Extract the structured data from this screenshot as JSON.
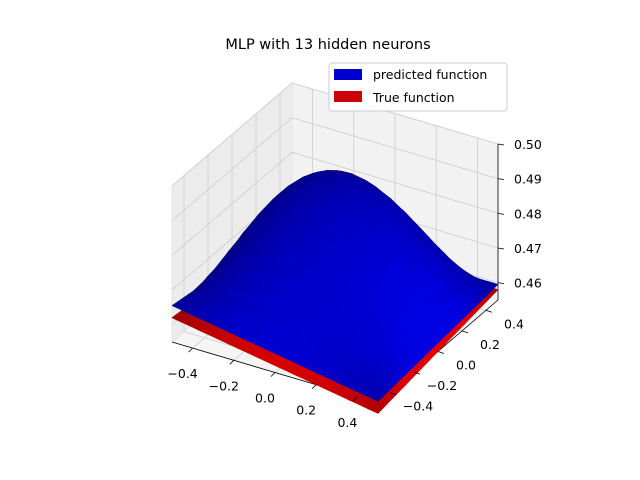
{
  "chart_data": {
    "type": "surface3d",
    "title": "MLP with 13 hidden neurons",
    "xlabel": "",
    "ylabel": "",
    "zlabel": "",
    "x_ticks": [
      "−0.4",
      "−0.2",
      "0.0",
      "0.2",
      "0.4"
    ],
    "y_ticks": [
      "−0.4",
      "−0.2",
      "0.0",
      "0.2",
      "0.4"
    ],
    "z_ticks": [
      "0.46",
      "0.47",
      "0.48",
      "0.49",
      "0.50"
    ],
    "xlim": [
      -0.5,
      0.5
    ],
    "ylim": [
      -0.5,
      0.5
    ],
    "zlim": [
      0.455,
      0.5
    ],
    "grid": true,
    "legend_position": "top-right",
    "series": [
      {
        "name": "predicted function",
        "color": "#0000cc",
        "peak_z": 0.4962,
        "corner_z": {
          "x-0.5_y-0.5": 0.4655,
          "x-0.5_y0.5": 0.4595,
          "x0.5_y-0.5": 0.4555,
          "x0.5_y0.5": 0.4595
        }
      },
      {
        "name": "True function",
        "color": "#cc0000",
        "peak_z": 0.4962,
        "corner_z": {
          "x-0.5_y-0.5": 0.462,
          "x-0.5_y0.5": 0.458,
          "x0.5_y-0.5": 0.452,
          "x0.5_y0.5": 0.458
        }
      }
    ]
  }
}
